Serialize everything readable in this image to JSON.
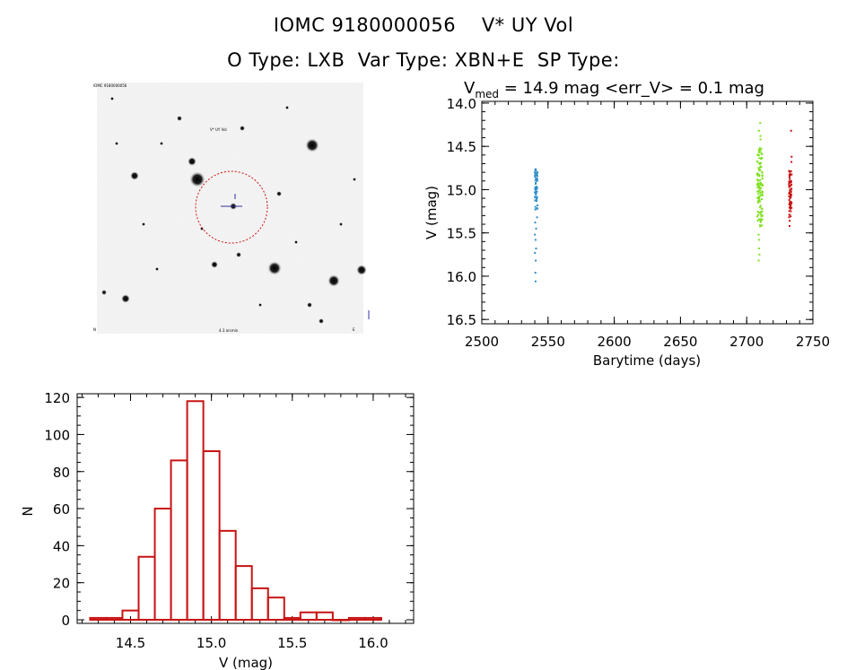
{
  "header": {
    "title": "IOMC 9180000056    V* UY Vol",
    "subtitle": "O Type: LXB  Var Type: XBN+E  SP Type:"
  },
  "image_panel": {
    "label_top_left": "IOMC 9180000056",
    "label_target": "V* UY Vol",
    "label_bottom_left": "N",
    "label_bottom_center": "4.3 arcmin",
    "label_bottom_right": "E"
  },
  "chart_data": [
    {
      "type": "scatter",
      "title_prefix": "V",
      "title_subscript": "med",
      "title_rest": " = 14.9 mag <err_V> = 0.1 mag",
      "xlabel": "Barytime (days)",
      "ylabel": "V (mag)",
      "xlim": [
        2500,
        2750
      ],
      "ylim": [
        16.55,
        13.98
      ],
      "y_inverted": true,
      "xticks": [
        2500,
        2550,
        2600,
        2650,
        2700,
        2750
      ],
      "yticks": [
        "14.0",
        "14.5",
        "15.0",
        "15.5",
        "16.0",
        "16.5"
      ],
      "series": [
        {
          "color": "#2f8fc8",
          "x": 2541,
          "v_core_range": [
            14.76,
            15.25
          ],
          "outliers": [
            15.32,
            15.38,
            15.45,
            15.52,
            15.58,
            15.68,
            15.73,
            15.82,
            15.96,
            16.06
          ]
        },
        {
          "color": "#7fe01f",
          "x": 2710,
          "v_core_range": [
            14.52,
            15.45
          ],
          "outliers": [
            14.23,
            14.32,
            14.38,
            14.42,
            15.52,
            15.58,
            15.68,
            15.75,
            15.82
          ]
        },
        {
          "color": "#c81414",
          "x": 2733,
          "v_core_range": [
            14.78,
            15.32
          ],
          "outliers": [
            14.32,
            14.62,
            14.68,
            15.36,
            15.42
          ]
        }
      ]
    },
    {
      "type": "bar",
      "subtype": "histogram",
      "xlabel": "V (mag)",
      "ylabel": "N",
      "xlim": [
        14.17,
        16.25
      ],
      "ylim": [
        0,
        122
      ],
      "xticks": [
        "14.5",
        "15.0",
        "15.5",
        "16.0"
      ],
      "yticks": [
        0,
        20,
        40,
        60,
        80,
        100,
        120
      ],
      "bin_width": 0.1,
      "bins": [
        {
          "x0": 14.25,
          "count": 1
        },
        {
          "x0": 14.35,
          "count": 1
        },
        {
          "x0": 14.45,
          "count": 5
        },
        {
          "x0": 14.55,
          "count": 34
        },
        {
          "x0": 14.65,
          "count": 60
        },
        {
          "x0": 14.75,
          "count": 86
        },
        {
          "x0": 14.85,
          "count": 118
        },
        {
          "x0": 14.95,
          "count": 91
        },
        {
          "x0": 15.05,
          "count": 48
        },
        {
          "x0": 15.15,
          "count": 29
        },
        {
          "x0": 15.25,
          "count": 17
        },
        {
          "x0": 15.35,
          "count": 12
        },
        {
          "x0": 15.45,
          "count": 1
        },
        {
          "x0": 15.55,
          "count": 4
        },
        {
          "x0": 15.65,
          "count": 4
        },
        {
          "x0": 15.75,
          "count": 0
        },
        {
          "x0": 15.85,
          "count": 1
        },
        {
          "x0": 15.95,
          "count": 1
        }
      ],
      "color": "#c81414"
    }
  ]
}
